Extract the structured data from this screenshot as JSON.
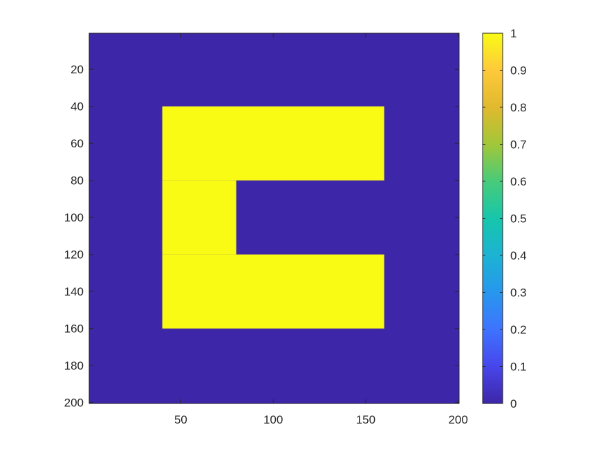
{
  "chart_data": {
    "type": "heatmap",
    "title": "",
    "xlabel": "",
    "ylabel": "",
    "xlim": [
      0.5,
      200.5
    ],
    "ylim": [
      0.5,
      200.5
    ],
    "y_direction": "reverse",
    "x_ticks": [
      50,
      100,
      150,
      200
    ],
    "x_tick_labels": [
      "50",
      "100",
      "150",
      "200"
    ],
    "y_ticks": [
      20,
      40,
      60,
      80,
      100,
      120,
      140,
      160,
      180,
      200
    ],
    "y_tick_labels": [
      "20",
      "40",
      "60",
      "80",
      "100",
      "120",
      "140",
      "160",
      "180",
      "200"
    ],
    "grid": false,
    "background_value": 0,
    "regions": [
      {
        "name": "",
        "value": 1,
        "x_range": [
          40,
          160
        ],
        "y_range": [
          40,
          80
        ]
      },
      {
        "name": "",
        "value": 1,
        "x_range": [
          40,
          80
        ],
        "y_range": [
          80,
          120
        ]
      },
      {
        "name": "",
        "value": 1,
        "x_range": [
          40,
          160
        ],
        "y_range": [
          120,
          160
        ]
      }
    ],
    "colorbar": {
      "range": [
        0,
        1
      ],
      "ticks": [
        0,
        0.1,
        0.2,
        0.3,
        0.4,
        0.5,
        0.6,
        0.7,
        0.8,
        0.9,
        1
      ],
      "tick_labels": [
        "0",
        "0.1",
        "0.2",
        "0.3",
        "0.4",
        "0.5",
        "0.6",
        "0.7",
        "0.8",
        "0.9",
        "1"
      ],
      "colormap": "parula",
      "colormap_stops": [
        "#3e26a8",
        "#4746eb",
        "#3e73ff",
        "#2797ed",
        "#1cb3d3",
        "#16c6ab",
        "#48cb7a",
        "#a1c739",
        "#e1b92e",
        "#fec93b",
        "#f9fb15"
      ]
    },
    "colors": {
      "low": "#3e26a8",
      "high": "#f9fb15"
    }
  }
}
